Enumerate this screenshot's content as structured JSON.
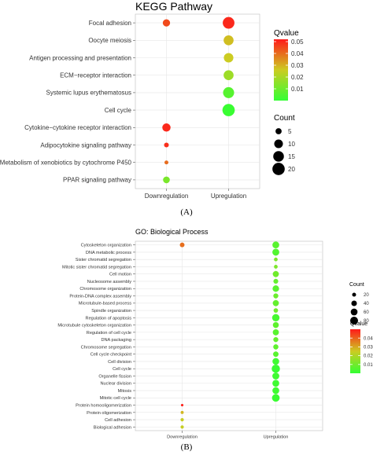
{
  "captions": {
    "a": "(A)",
    "b": "(B)"
  },
  "colors": {
    "low": "#33ff33",
    "high": "#ff1a1a",
    "mid": "#cccc22",
    "panel": "#ffffff",
    "grid": "#e6e6e6",
    "text": "#333333"
  },
  "chart_data": [
    {
      "type": "scatter",
      "title": "KEGG Pathway",
      "x_categories": [
        "Downregulation",
        "Upregulation"
      ],
      "y_categories": [
        "Focal adhesion",
        "Oocyte meiosis",
        "Antigen processing and presentation",
        "ECM−receptor interaction",
        "Systemic lupus erythematosus",
        "Cell cycle",
        "Cytokine−cytokine receptor interaction",
        "Adipocytokine signaling pathway",
        "Metabolism of xenobiotics by cytochrome P450",
        "PPAR signaling pathway"
      ],
      "points": [
        {
          "x": "Downregulation",
          "y": "Focal adhesion",
          "count": 7,
          "qvalue": 0.045
        },
        {
          "x": "Upregulation",
          "y": "Focal adhesion",
          "count": 18,
          "qvalue": 0.05
        },
        {
          "x": "Upregulation",
          "y": "Oocyte meiosis",
          "count": 13,
          "qvalue": 0.028
        },
        {
          "x": "Upregulation",
          "y": "Antigen processing and presentation",
          "count": 12,
          "qvalue": 0.026
        },
        {
          "x": "Upregulation",
          "y": "ECM−receptor interaction",
          "count": 13,
          "qvalue": 0.018
        },
        {
          "x": "Upregulation",
          "y": "Systemic lupus erythematosus",
          "count": 16,
          "qvalue": 0.006
        },
        {
          "x": "Upregulation",
          "y": "Cell cycle",
          "count": 20,
          "qvalue": 0.001
        },
        {
          "x": "Downregulation",
          "y": "Cytokine−cytokine receptor interaction",
          "count": 9,
          "qvalue": 0.05
        },
        {
          "x": "Downregulation",
          "y": "Adipocytokine signaling pathway",
          "count": 3,
          "qvalue": 0.049
        },
        {
          "x": "Downregulation",
          "y": "Metabolism of xenobiotics by cytochrome P450",
          "count": 2,
          "qvalue": 0.04
        },
        {
          "x": "Downregulation",
          "y": "PPAR signaling pathway",
          "count": 6,
          "qvalue": 0.012
        }
      ],
      "color_legend": {
        "title": "Qvalue",
        "ticks": [
          "0.05",
          "0.04",
          "0.03",
          "0.02",
          "0.01"
        ],
        "min": 0,
        "max": 0.052
      },
      "size_legend": {
        "title": "Count",
        "labels": [
          "5",
          "10",
          "15",
          "20"
        ],
        "values": [
          5,
          10,
          15,
          20
        ]
      }
    },
    {
      "type": "scatter",
      "title": "GO: Biological Process",
      "x_categories": [
        "Downregulation",
        "Upregulation"
      ],
      "y_categories": [
        "Cytoskeleton organization",
        "DNA metabolic process",
        "Sister chromatid segregation",
        "Mitotic sister chromatid segregation",
        "Cell motion",
        "Nucleosome assembly",
        "Chromosome organization",
        "Protein-DNA complex assembly",
        "Microtubule-based process",
        "Spindle organization",
        "Regulation of apoptosis",
        "Microtubule cytoskeleton organization",
        "Regulation of cell cycle",
        "DNA packaging",
        "Chromosome segregation",
        "Cell cycle checkpoint",
        "Cell division",
        "Cell cycle",
        "Organelle fission",
        "Nuclear division",
        "Mitosis",
        "Mitotic cell cycle",
        "Protein homooligomerization",
        "Protein oligomerization",
        "Cell adhesion",
        "Biological adhesion"
      ],
      "points": [
        {
          "x": "Downregulation",
          "y": "Cytoskeleton organization",
          "count": 28,
          "qvalue": 0.038
        },
        {
          "x": "Upregulation",
          "y": "Cytoskeleton organization",
          "count": 60,
          "qvalue": 0.006
        },
        {
          "x": "Upregulation",
          "y": "DNA metabolic process",
          "count": 62,
          "qvalue": 0.005
        },
        {
          "x": "Upregulation",
          "y": "Sister chromatid segregation",
          "count": 18,
          "qvalue": 0.012
        },
        {
          "x": "Upregulation",
          "y": "Mitotic sister chromatid segregation",
          "count": 18,
          "qvalue": 0.012
        },
        {
          "x": "Upregulation",
          "y": "Cell motion",
          "count": 48,
          "qvalue": 0.01
        },
        {
          "x": "Upregulation",
          "y": "Nucleosome assembly",
          "count": 30,
          "qvalue": 0.008
        },
        {
          "x": "Upregulation",
          "y": "Chromosome organization",
          "count": 55,
          "qvalue": 0.006
        },
        {
          "x": "Upregulation",
          "y": "Protein-DNA complex assembly",
          "count": 32,
          "qvalue": 0.009
        },
        {
          "x": "Upregulation",
          "y": "Microtubule-based process",
          "count": 48,
          "qvalue": 0.008
        },
        {
          "x": "Upregulation",
          "y": "Spindle organization",
          "count": 26,
          "qvalue": 0.01
        },
        {
          "x": "Upregulation",
          "y": "Regulation of apoptosis",
          "count": 70,
          "qvalue": 0.003
        },
        {
          "x": "Upregulation",
          "y": "Microtubule cytoskeleton organization",
          "count": 45,
          "qvalue": 0.007
        },
        {
          "x": "Upregulation",
          "y": "Regulation of cell cycle",
          "count": 48,
          "qvalue": 0.006
        },
        {
          "x": "Upregulation",
          "y": "DNA packaging",
          "count": 32,
          "qvalue": 0.008
        },
        {
          "x": "Upregulation",
          "y": "Chromosome segregation",
          "count": 35,
          "qvalue": 0.007
        },
        {
          "x": "Upregulation",
          "y": "Cell cycle checkpoint",
          "count": 38,
          "qvalue": 0.006
        },
        {
          "x": "Upregulation",
          "y": "Cell division",
          "count": 58,
          "qvalue": 0.002
        },
        {
          "x": "Upregulation",
          "y": "Cell cycle",
          "count": 88,
          "qvalue": 0.001
        },
        {
          "x": "Upregulation",
          "y": "Organelle fission",
          "count": 62,
          "qvalue": 0.002
        },
        {
          "x": "Upregulation",
          "y": "Nuclear division",
          "count": 60,
          "qvalue": 0.002
        },
        {
          "x": "Upregulation",
          "y": "Mitosis",
          "count": 60,
          "qvalue": 0.002
        },
        {
          "x": "Upregulation",
          "y": "Mitotic cell cycle",
          "count": 75,
          "qvalue": 0.001
        },
        {
          "x": "Downregulation",
          "y": "Protein homooligomerization",
          "count": 8,
          "qvalue": 0.049
        },
        {
          "x": "Downregulation",
          "y": "Protein oligomerization",
          "count": 12,
          "qvalue": 0.028
        },
        {
          "x": "Downregulation",
          "y": "Cell adhesion",
          "count": 14,
          "qvalue": 0.024
        },
        {
          "x": "Downregulation",
          "y": "Biological adhesion",
          "count": 14,
          "qvalue": 0.024
        }
      ],
      "color_legend": {
        "title": "Qvalue",
        "ticks": [
          "0.040",
          "0.030",
          "0.020",
          "0.010"
        ],
        "min": 0,
        "max": 0.05
      },
      "size_legend": {
        "title": "Count",
        "labels": [
          "20",
          "40",
          "60",
          "80"
        ],
        "values": [
          20,
          40,
          60,
          80
        ]
      }
    }
  ]
}
